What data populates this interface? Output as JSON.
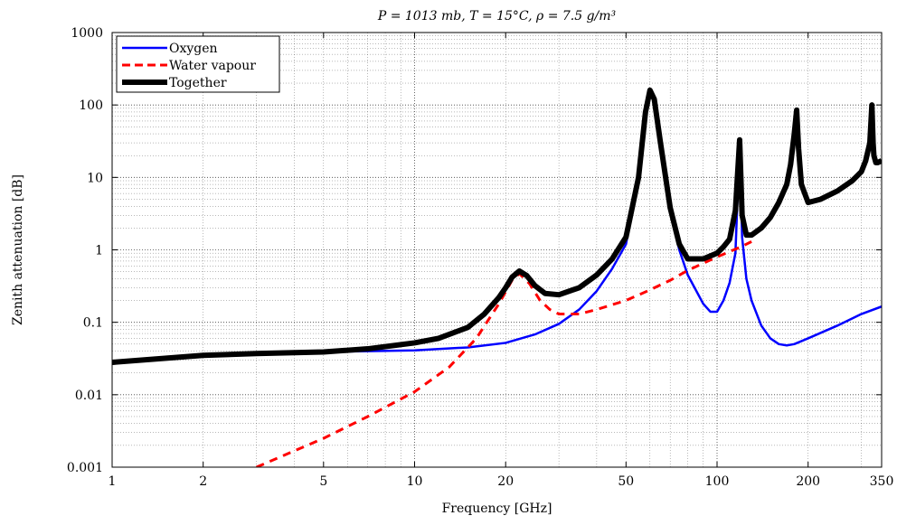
{
  "chart_data": {
    "type": "line",
    "title": "P = 1013 mb, T = 15°C, ρ = 7.5 g/m³",
    "xlabel": "Frequency [GHz]",
    "ylabel": "Zenith attenuation [dB]",
    "x_scale": "log",
    "y_scale": "log",
    "xlim": [
      1,
      350
    ],
    "ylim": [
      0.001,
      1000
    ],
    "grid": true,
    "legend_position": "top-left",
    "x_ticks": [
      "1",
      "2",
      "5",
      "10",
      "20",
      "50",
      "100",
      "200",
      "350"
    ],
    "y_ticks": [
      "0.001",
      "0.01",
      "0.1",
      "1",
      "10",
      "100",
      "1000"
    ],
    "series": [
      {
        "name": "Oxygen",
        "color": "#0000ff",
        "style": "solid",
        "x": [
          1,
          2,
          3,
          5,
          7,
          10,
          15,
          20,
          25,
          30,
          35,
          40,
          45,
          50,
          55,
          58,
          60,
          62,
          65,
          70,
          75,
          80,
          90,
          95,
          100,
          105,
          110,
          115,
          118.75,
          121,
          125,
          130,
          140,
          150,
          160,
          170,
          180,
          200,
          250,
          300,
          350
        ],
        "y": [
          0.028,
          0.035,
          0.037,
          0.039,
          0.04,
          0.041,
          0.045,
          0.052,
          0.068,
          0.095,
          0.15,
          0.27,
          0.55,
          1.2,
          10,
          80,
          150,
          110,
          30,
          3.5,
          1.0,
          0.45,
          0.18,
          0.14,
          0.14,
          0.2,
          0.35,
          0.9,
          30,
          1.5,
          0.4,
          0.2,
          0.09,
          0.06,
          0.05,
          0.048,
          0.05,
          0.06,
          0.09,
          0.13,
          0.165
        ]
      },
      {
        "name": "Water vapour",
        "color": "#ff0000",
        "style": "dashed",
        "x": [
          3,
          5,
          7,
          10,
          13,
          16,
          19,
          21,
          22.2,
          24,
          26,
          28,
          30,
          35,
          40,
          50,
          60,
          70,
          80,
          100,
          120,
          130
        ],
        "y": [
          0.001,
          0.0025,
          0.005,
          0.011,
          0.024,
          0.06,
          0.18,
          0.38,
          0.47,
          0.34,
          0.2,
          0.15,
          0.13,
          0.13,
          0.15,
          0.2,
          0.28,
          0.38,
          0.52,
          0.8,
          1.1,
          1.3
        ]
      },
      {
        "name": "Together",
        "color": "#000000",
        "style": "solid",
        "x": [
          1,
          2,
          3,
          5,
          7,
          10,
          12,
          15,
          17,
          19,
          20,
          21,
          22.2,
          23.5,
          25,
          27,
          30,
          35,
          40,
          45,
          50,
          55,
          58,
          60,
          62,
          65,
          70,
          75,
          80,
          90,
          100,
          105,
          110,
          115,
          118.75,
          121,
          125,
          130,
          140,
          150,
          160,
          170,
          175,
          180,
          183.3,
          186,
          190,
          200,
          220,
          250,
          280,
          300,
          310,
          320,
          325,
          328,
          330,
          335,
          340,
          350
        ],
        "y": [
          0.028,
          0.035,
          0.037,
          0.039,
          0.043,
          0.052,
          0.06,
          0.085,
          0.13,
          0.22,
          0.3,
          0.42,
          0.51,
          0.44,
          0.32,
          0.25,
          0.24,
          0.3,
          0.45,
          0.75,
          1.5,
          10,
          80,
          160,
          120,
          30,
          3.8,
          1.2,
          0.75,
          0.75,
          0.9,
          1.1,
          1.4,
          3.5,
          33,
          3.0,
          1.6,
          1.6,
          2.0,
          2.8,
          4.5,
          8,
          15,
          40,
          85,
          25,
          8,
          4.5,
          5,
          6.5,
          9,
          12,
          17,
          30,
          100,
          30,
          20,
          16,
          16,
          17
        ]
      }
    ]
  }
}
